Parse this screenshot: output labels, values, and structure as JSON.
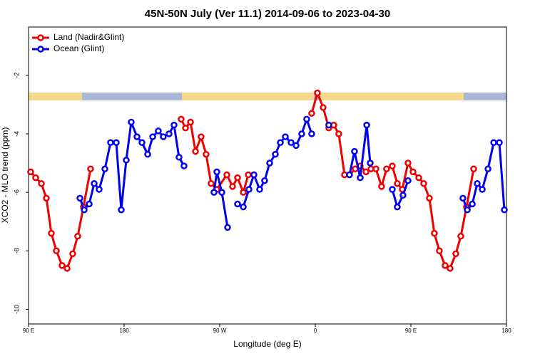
{
  "chart_data": {
    "type": "line",
    "title": "45N-50N July (Ver 11.1)   2014-09-06 to 2023-04-30",
    "xlabel": "Longitude (deg E)",
    "ylabel": "XCO2 - MLO trend (ppm)",
    "xlim": [
      90,
      540
    ],
    "ylim": [
      -10.5,
      -0.35
    ],
    "xticks": [
      {
        "value": 90,
        "label": "90 E"
      },
      180,
      {
        "value": 270,
        "label": "90 W"
      },
      {
        "value": 360,
        "label": "0"
      },
      {
        "value": 450,
        "label": "90 E"
      },
      {
        "value": 540,
        "label": "180"
      }
    ],
    "yticks": [
      -10,
      -8,
      -6,
      -4,
      -2
    ],
    "legend": "top-left",
    "series": [
      {
        "name": "Land (Nadir&Glint)",
        "color": "#ee0000",
        "x": [
          92,
          96.7,
          102.1,
          106.8,
          111.5,
          116.2,
          121.6,
          126.3,
          131.6,
          136.3,
          141.7,
          148.4,
          null,
          233.7,
          237.8,
          242.5,
          247.2,
          252.5,
          257.2,
          261.9,
          267.3,
          276.7,
          282.1,
          286.8,
          292.2,
          296.9,
          302.2,
          null,
          356.6,
          362,
          367.4,
          372.7,
          377.4,
          382.1,
          387.5,
          392.2,
          397.6,
          402.3,
          407.7,
          412.4,
          417.1,
          422.4,
          427.1,
          432.5,
          437.2,
          441.9,
          447.3,
          452,
          457.4,
          462.1,
          467.4,
          472.1,
          476.8,
          482.2,
          486.9,
          492.3,
          497,
          502.4,
          509.1
        ],
        "values": [
          -5.3,
          -5.5,
          -5.7,
          -6.2,
          -7.4,
          -8.0,
          -8.5,
          -8.6,
          -8.1,
          -7.5,
          -6.5,
          -5.2,
          null,
          -3.5,
          -3.8,
          -3.6,
          -4.6,
          -4.1,
          -4.7,
          -5.7,
          -5.9,
          -5.4,
          -5.8,
          -5.5,
          -6.0,
          -5.4,
          -5.4,
          null,
          -3.3,
          -2.6,
          -3.1,
          -3.8,
          -3.7,
          -4.0,
          -5.4,
          -5.4,
          -5.2,
          -5.1,
          -5.3,
          -5.2,
          -5.2,
          -5.8,
          -5.2,
          -5.1,
          -5.7,
          -5.9,
          -5.0,
          -5.3,
          -5.5,
          -5.7,
          -6.2,
          -7.4,
          -8.0,
          -8.5,
          -8.6,
          -8.1,
          -7.5,
          -6.5,
          -5.2
        ]
      },
      {
        "name": "Ocean (Glint)",
        "color": "#0000ee",
        "x": [
          138.4,
          142.4,
          147.1,
          151.8,
          156.5,
          161.9,
          167.2,
          172.6,
          177.3,
          182,
          186.7,
          192.1,
          196.8,
          202.2,
          206.9,
          212.2,
          216.9,
          222.3,
          227,
          231.7,
          236.4,
          null,
          264.6,
          267.3,
          272,
          277.4,
          null,
          286.8,
          292.2,
          297.5,
          302.2,
          307.6,
          312.3,
          317,
          322.4,
          327.1,
          331.8,
          337.2,
          341.9,
          347.2,
          351.9,
          356.6,
          null,
          372.7,
          null,
          392.2,
          396.9,
          402.3,
          408.4,
          411.7,
          null,
          432.5,
          437.2,
          442.6,
          447.3,
          null,
          499,
          503.1,
          507.8,
          512.5,
          517.2,
          522.6,
          528,
          533.3,
          538
        ],
        "values": [
          -6.2,
          -6.6,
          -6.4,
          -5.7,
          -5.9,
          -5.2,
          -4.3,
          -4.3,
          -6.6,
          -4.9,
          -3.6,
          -4.1,
          -4.3,
          -4.7,
          -4.1,
          -3.9,
          -4.1,
          -4.0,
          -3.7,
          -4.8,
          -5.1,
          null,
          -6.0,
          -5.3,
          -6.0,
          -7.2,
          null,
          -6.4,
          -6.5,
          -5.9,
          -5.4,
          -5.9,
          -5.6,
          -5.0,
          -4.7,
          -4.3,
          -4.1,
          -4.3,
          -4.4,
          -4.0,
          -3.5,
          -4.0,
          null,
          -3.7,
          null,
          -5.4,
          -4.6,
          -5.5,
          -3.7,
          -5.0,
          null,
          -5.9,
          -6.5,
          -6.1,
          -5.6,
          null,
          -6.2,
          -6.6,
          -6.4,
          -5.7,
          -5.9,
          -5.2,
          -4.3,
          -4.3,
          -6.6
        ]
      }
    ]
  }
}
